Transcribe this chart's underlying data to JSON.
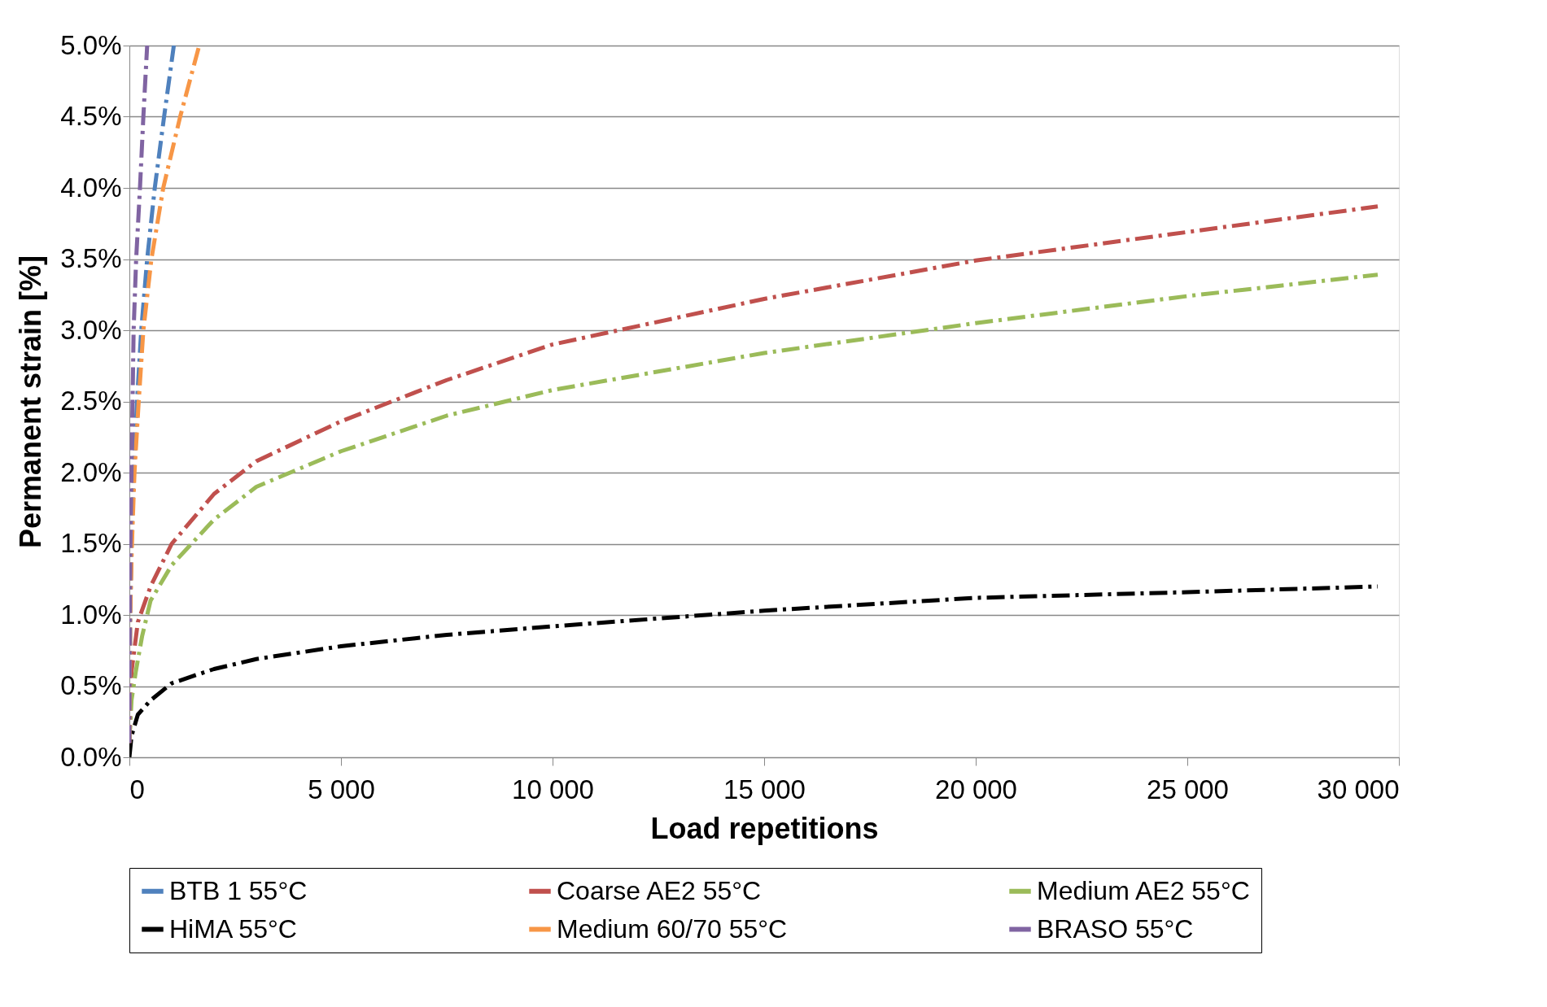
{
  "chart_data": {
    "type": "line",
    "xlabel": "Load repetitions",
    "ylabel": "Permanent strain [%]",
    "xlim": [
      0,
      30000
    ],
    "ylim": [
      0,
      5
    ],
    "xticks": [
      0,
      {
        "value": 5000,
        "label": "5 000"
      },
      {
        "value": 10000,
        "label": "10 000"
      },
      {
        "value": 15000,
        "label": "15 000"
      },
      {
        "value": 20000,
        "label": "20 000"
      },
      {
        "value": 25000,
        "label": "25 000"
      },
      {
        "value": 30000,
        "label": "30 000"
      }
    ],
    "yticks": [
      {
        "value": 0,
        "label": "0.0%"
      },
      {
        "value": 0.5,
        "label": "0.5%"
      },
      {
        "value": 1,
        "label": "1.0%"
      },
      {
        "value": 1.5,
        "label": "1.5%"
      },
      {
        "value": 2,
        "label": "2.0%"
      },
      {
        "value": 2.5,
        "label": "2.5%"
      },
      {
        "value": 3,
        "label": "3.0%"
      },
      {
        "value": 3.5,
        "label": "3.5%"
      },
      {
        "value": 4,
        "label": "4.0%"
      },
      {
        "value": 4.5,
        "label": "4.5%"
      },
      {
        "value": 5,
        "label": "5.0%"
      }
    ],
    "grid": "y",
    "legend": "bottom",
    "line_style": "dashed",
    "marker": "none",
    "series": [
      {
        "name": "BTB 1 55°C",
        "color": "#4f81bd",
        "x": [
          0,
          20,
          50,
          100,
          180,
          280,
          420,
          600,
          820,
          1050
        ],
        "values": [
          0.1,
          1.0,
          1.5,
          2.0,
          2.5,
          3.0,
          3.5,
          4.0,
          4.5,
          5.0
        ]
      },
      {
        "name": "Coarse AE2  55°C",
        "color": "#c0504d",
        "x": [
          0,
          50,
          200,
          500,
          1000,
          2000,
          3000,
          5000,
          7500,
          10000,
          15000,
          20000,
          25000,
          29500
        ],
        "values": [
          0.1,
          0.6,
          0.95,
          1.2,
          1.5,
          1.85,
          2.08,
          2.36,
          2.65,
          2.9,
          3.22,
          3.49,
          3.69,
          3.87
        ]
      },
      {
        "name": "Medium AE2 55°C",
        "color": "#9bbb59",
        "x": [
          0,
          50,
          150,
          300,
          500,
          1000,
          2000,
          3000,
          5000,
          7500,
          10000,
          15000,
          20000,
          25000,
          29500
        ],
        "values": [
          0.1,
          0.4,
          0.6,
          0.85,
          1.1,
          1.35,
          1.67,
          1.9,
          2.15,
          2.4,
          2.58,
          2.84,
          3.05,
          3.24,
          3.39
        ]
      },
      {
        "name": "HiMA 55°C",
        "color": "#000000",
        "x": [
          0,
          50,
          200,
          500,
          1000,
          2000,
          3000,
          5000,
          7500,
          10000,
          15000,
          20000,
          25000,
          29500
        ],
        "values": [
          0,
          0.15,
          0.3,
          0.4,
          0.52,
          0.62,
          0.69,
          0.78,
          0.86,
          0.92,
          1.03,
          1.12,
          1.16,
          1.2
        ]
      },
      {
        "name": "Medium 60/70 55°C",
        "color": "#f79646",
        "x": [
          0,
          20,
          60,
          120,
          220,
          330,
          520,
          800,
          1200,
          1650
        ],
        "values": [
          0.1,
          1.0,
          1.5,
          2.0,
          2.5,
          3.0,
          3.5,
          4.0,
          4.5,
          5.0
        ]
      },
      {
        "name": "BRASO 55°C",
        "color": "#8064a2",
        "x": [
          0,
          10,
          25,
          50,
          75,
          100,
          160,
          250,
          330,
          420
        ],
        "values": [
          0.1,
          1.0,
          1.5,
          2.0,
          2.5,
          3.0,
          3.5,
          4.0,
          4.5,
          5.0
        ]
      }
    ]
  }
}
